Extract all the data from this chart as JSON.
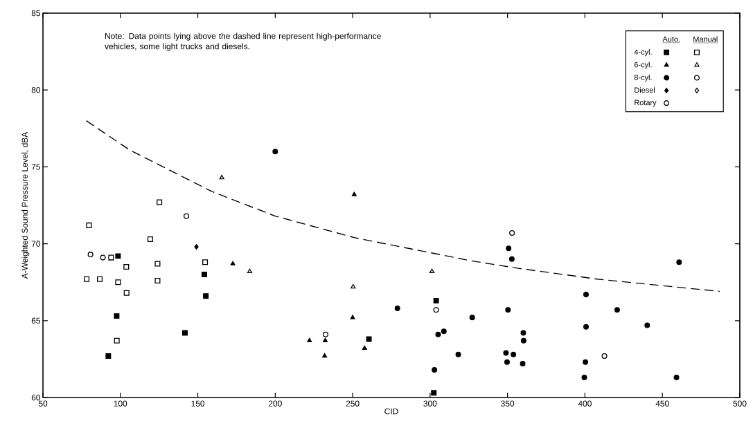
{
  "chart_data": {
    "type": "scatter",
    "xlabel": "CID",
    "ylabel": "A-Weighted Sound Pressure Level, dBA",
    "xlim": [
      50,
      500
    ],
    "xticks": [
      50,
      100,
      150,
      200,
      250,
      300,
      350,
      400,
      450,
      500
    ],
    "ylim": [
      60,
      85
    ],
    "yticks": [
      60,
      65,
      70,
      75,
      80,
      85
    ],
    "grid": false,
    "legend": "top right",
    "annotations": [
      "Note: Data points lying above the dashed line represent high-performance vehicles, some light trucks and diesels.",
      "Auto.",
      "Manual"
    ],
    "series": [
      {
        "name": "4-cyl.",
        "marker": "square",
        "color": "#000000",
        "x": [
          98.5,
          97.6,
          92.2,
          141.7,
          154.2,
          155.2,
          260.5,
          303.9,
          302.4
        ],
        "values": [
          69.2,
          65.3,
          62.7,
          64.2,
          68.0,
          66.6,
          63.8,
          66.3,
          60.3
        ]
      },
      {
        "marker": "square",
        "color": "#000000",
        "x": [
          79.7,
          125.2,
          119.3,
          94.0,
          103.8,
          124.0,
          154.7,
          78.2,
          86.7,
          98.5,
          124.0,
          104.0,
          97.7
        ],
        "values": [
          71.2,
          72.7,
          70.3,
          69.1,
          68.5,
          68.7,
          68.8,
          67.7,
          67.7,
          67.5,
          67.6,
          66.8,
          63.7
        ]
      },
      {
        "name": "6-cyl.",
        "marker": "triangle",
        "color": "#000000",
        "x": [
          172.6,
          251.0,
          250.0,
          222.1,
          232.3,
          231.9,
          257.7
        ],
        "values": [
          68.7,
          73.2,
          65.2,
          63.7,
          63.7,
          62.7,
          63.2
        ]
      },
      {
        "marker": "triangle",
        "color": "#000000",
        "x": [
          183.5,
          165.5,
          301.2,
          250.3
        ],
        "values": [
          68.2,
          74.3,
          68.2,
          67.2
        ]
      },
      {
        "name": "8-cyl.",
        "marker": "circle",
        "color": "#000000",
        "x": [
          200.0,
          278.9,
          305.2,
          308.9,
          318.2,
          302.8,
          327.2,
          350.7,
          352.8,
          460.8,
          400.7,
          350.3,
          420.8,
          400.7,
          440.2,
          360.2,
          360.4,
          349.0,
          353.8,
          349.7,
          359.8,
          400.3,
          399.6,
          459.1
        ],
        "values": [
          76.0,
          65.8,
          64.1,
          64.3,
          62.8,
          61.8,
          65.2,
          69.7,
          69.0,
          68.8,
          66.7,
          65.7,
          65.7,
          64.6,
          64.7,
          64.2,
          63.7,
          62.9,
          62.8,
          62.3,
          62.2,
          62.3,
          61.3,
          61.3
        ]
      },
      {
        "marker": "circle",
        "color": "#000000",
        "x": [
          142.6,
          303.9,
          232.5,
          352.9,
          412.6
        ],
        "values": [
          71.8,
          65.7,
          64.1,
          70.7,
          62.7
        ]
      },
      {
        "name": "Diesel",
        "marker": "diamond",
        "color": "#000000",
        "x": [
          149.1
        ],
        "values": [
          69.8
        ]
      },
      {
        "marker": "diamond",
        "color": "#000000"
      },
      {
        "name": "Rotary",
        "marker": "circle",
        "color": "#000000",
        "x": [
          80.7,
          88.7
        ],
        "values": [
          69.3,
          69.1
        ]
      },
      {
        "type": "line",
        "line_style": "dashed",
        "marker": "none",
        "color": "#000000",
        "x": [
          78,
          106,
          159,
          200,
          251,
          326,
          357,
          408,
          487
        ],
        "values": [
          78.0,
          76.1,
          73.4,
          71.8,
          70.4,
          68.9,
          68.4,
          67.7,
          66.9
        ]
      }
    ]
  }
}
